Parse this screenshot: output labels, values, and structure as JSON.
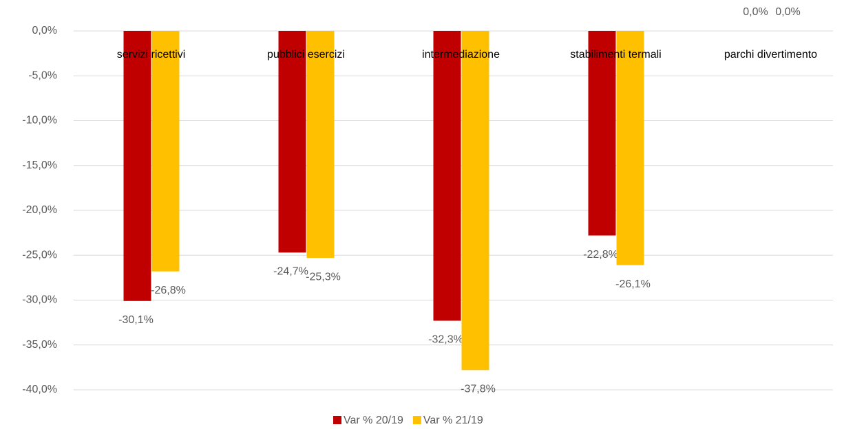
{
  "chart_data": {
    "type": "bar",
    "categories": [
      "servizi ricettivi",
      "pubblici esercizi",
      "intermediazione",
      "stabilimenti termali",
      "parchi divertimento"
    ],
    "series": [
      {
        "name": "Var % 20/19",
        "color": "#c00000",
        "values": [
          -30.1,
          -24.7,
          -32.3,
          -22.8,
          0
        ],
        "value_labels": [
          "-30,1%",
          "-24,7%",
          "-32,3%",
          "-22,8%",
          "0,0%"
        ]
      },
      {
        "name": "Var % 21/19",
        "color": "#ffc000",
        "values": [
          -26.8,
          -25.3,
          -37.8,
          -26.1,
          0
        ],
        "value_labels": [
          "-26,8%",
          "-25,3%",
          "-37,8%",
          "-26,1%",
          "0,0%"
        ]
      }
    ],
    "ylim": [
      -40,
      0
    ],
    "yticks": [
      {
        "value": 0,
        "label": "0,0%"
      },
      {
        "value": -5,
        "label": "-5,0%"
      },
      {
        "value": -10,
        "label": "-10,0%"
      },
      {
        "value": -15,
        "label": "-15,0%"
      },
      {
        "value": -20,
        "label": "-20,0%"
      },
      {
        "value": -25,
        "label": "-25,0%"
      },
      {
        "value": -30,
        "label": "-30,0%"
      },
      {
        "value": -35,
        "label": "-35,0%"
      },
      {
        "value": -40,
        "label": "-40,0%"
      }
    ],
    "grid": true,
    "legend": "bottom"
  }
}
